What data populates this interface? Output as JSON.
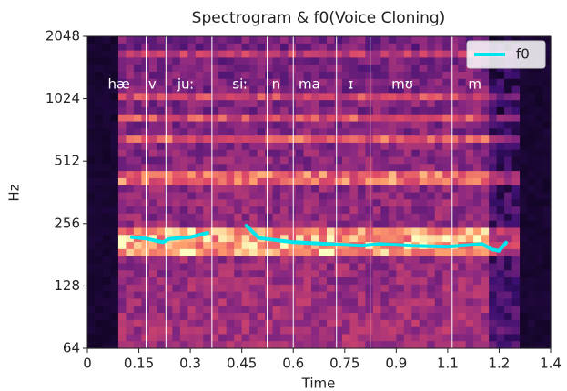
{
  "chart_data": {
    "type": "line",
    "title": "Spectrogram & f0(Voice Cloning)",
    "x_label": "Time",
    "y_label": "Hz",
    "xlim": [
      0,
      1.35
    ],
    "xticks": [
      0,
      0.15,
      0.3,
      0.45,
      0.6,
      0.75,
      0.9,
      {
        "value": 1.05,
        "label": "1.1"
      },
      1.2,
      {
        "value": 1.35,
        "label": "1.4"
      }
    ],
    "ylim": [
      64,
      2048
    ],
    "log_scale_y": true,
    "log_base": 2,
    "yticks": [
      64,
      128,
      256,
      512,
      1024,
      2048
    ],
    "legend": "upper right",
    "x": [
      0.13,
      0.17,
      0.22,
      0.24,
      0.3,
      0.35,
      0.4,
      0.463,
      0.5,
      0.55,
      0.6,
      0.7,
      0.8,
      0.85,
      0.95,
      1.05,
      1.15,
      1.18,
      1.2,
      1.22
    ],
    "series": [
      {
        "name": "f0",
        "color": "#00e5ee",
        "values": [
          220,
          217,
          208,
          216,
          220,
          231,
          null,
          250,
          218,
          213,
          208,
          204,
          200,
          204,
          200,
          198,
          204,
          192,
          189,
          207
        ]
      }
    ],
    "boundaries": [
      0.171,
      0.229,
      0.363,
      0.524,
      0.6,
      0.726,
      0.824,
      1.063
    ],
    "annotations": [
      {
        "text": "hæ",
        "x": 0.092
      },
      {
        "text": "v",
        "x": 0.189
      },
      {
        "text": "juː",
        "x": 0.287
      },
      {
        "text": "siː",
        "x": 0.445
      },
      {
        "text": "n",
        "x": 0.55
      },
      {
        "text": "ma",
        "x": 0.647
      },
      {
        "text": "ɪ",
        "x": 0.768
      },
      {
        "text": "mʊ",
        "x": 0.918
      },
      {
        "text": "m",
        "x": 1.129
      }
    ]
  }
}
